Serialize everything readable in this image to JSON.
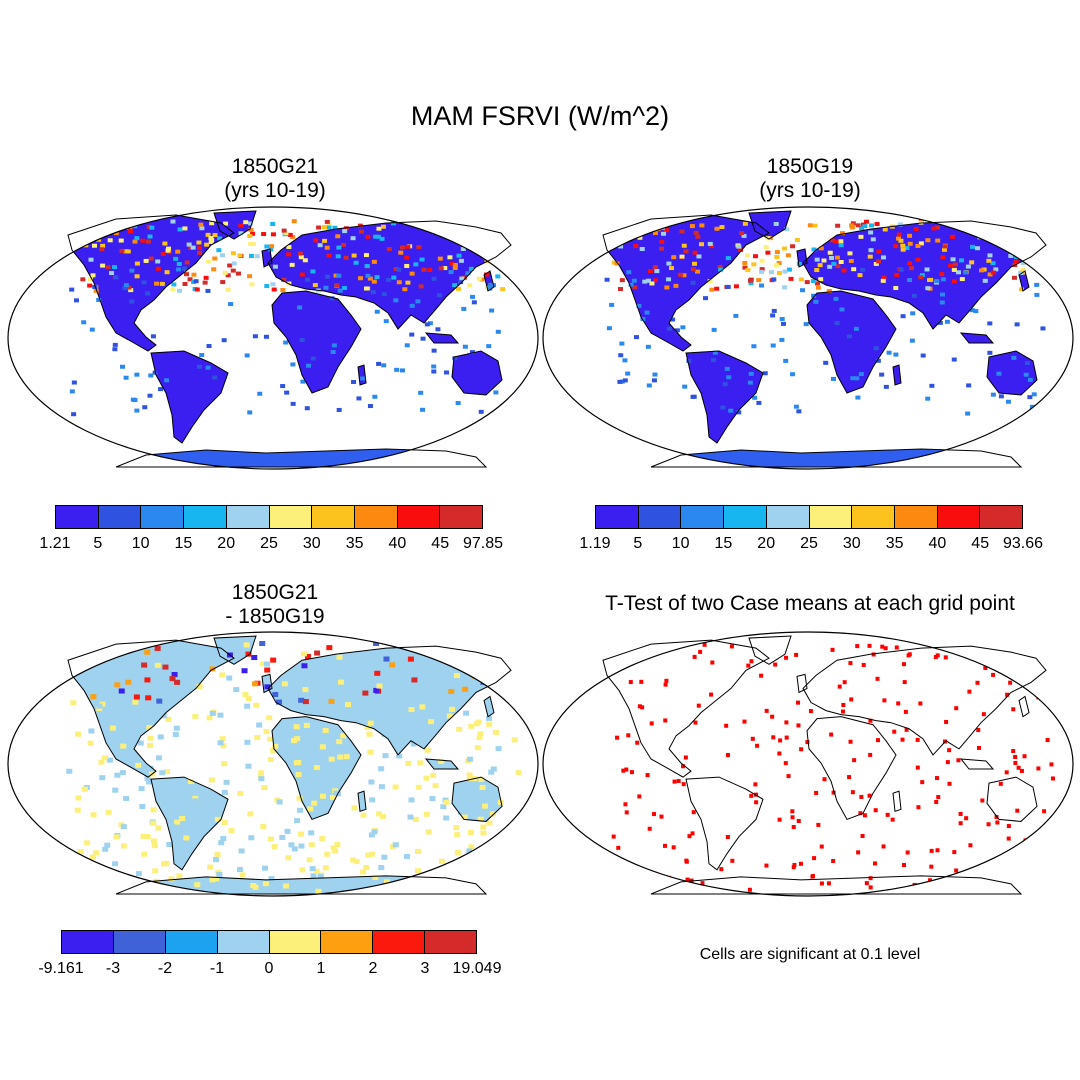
{
  "figure_title": "MAM FSRVI (W/m^2)",
  "panels": [
    {
      "id": "g21",
      "title_line1": "1850G21",
      "title_line2": "(yrs 10-19)",
      "colorbar": {
        "colors": [
          "#3b1ef0",
          "#2f52e0",
          "#2a88ee",
          "#18b6f0",
          "#9fd2ee",
          "#fdf07a",
          "#fcc21d",
          "#fc8a10",
          "#f90d0d",
          "#d42a2a"
        ],
        "labels": [
          "1.21",
          "5",
          "10",
          "15",
          "20",
          "25",
          "30",
          "35",
          "40",
          "45",
          "97.85"
        ]
      },
      "map_fill": "blue"
    },
    {
      "id": "g19",
      "title_line1": "1850G19",
      "title_line2": "(yrs 10-19)",
      "colorbar": {
        "colors": [
          "#3b1ef0",
          "#2f52e0",
          "#2a88ee",
          "#18b6f0",
          "#9fd2ee",
          "#fdf07a",
          "#fcc21d",
          "#fc8a10",
          "#f90d0d",
          "#d42a2a"
        ],
        "labels": [
          "1.19",
          "5",
          "10",
          "15",
          "20",
          "25",
          "30",
          "35",
          "40",
          "45",
          "93.66"
        ]
      },
      "map_fill": "blue"
    },
    {
      "id": "diff",
      "title_line1": "1850G21",
      "title_line2": "- 1850G19",
      "colorbar": {
        "colors": [
          "#3b1ef0",
          "#3f62d8",
          "#1ca2ee",
          "#9fd2ee",
          "#fdf07a",
          "#fc9f10",
          "#f91a0d",
          "#d42a2a"
        ],
        "labels": [
          "-9.161",
          "-3",
          "-2",
          "-1",
          "0",
          "1",
          "2",
          "3",
          "19.049"
        ]
      },
      "map_fill": "diff"
    },
    {
      "id": "ttest",
      "title_line1": "T-Test of two Case means at each grid point",
      "title_line2": "",
      "note": "Cells are significant at 0.1 level",
      "map_fill": "sig"
    }
  ]
}
